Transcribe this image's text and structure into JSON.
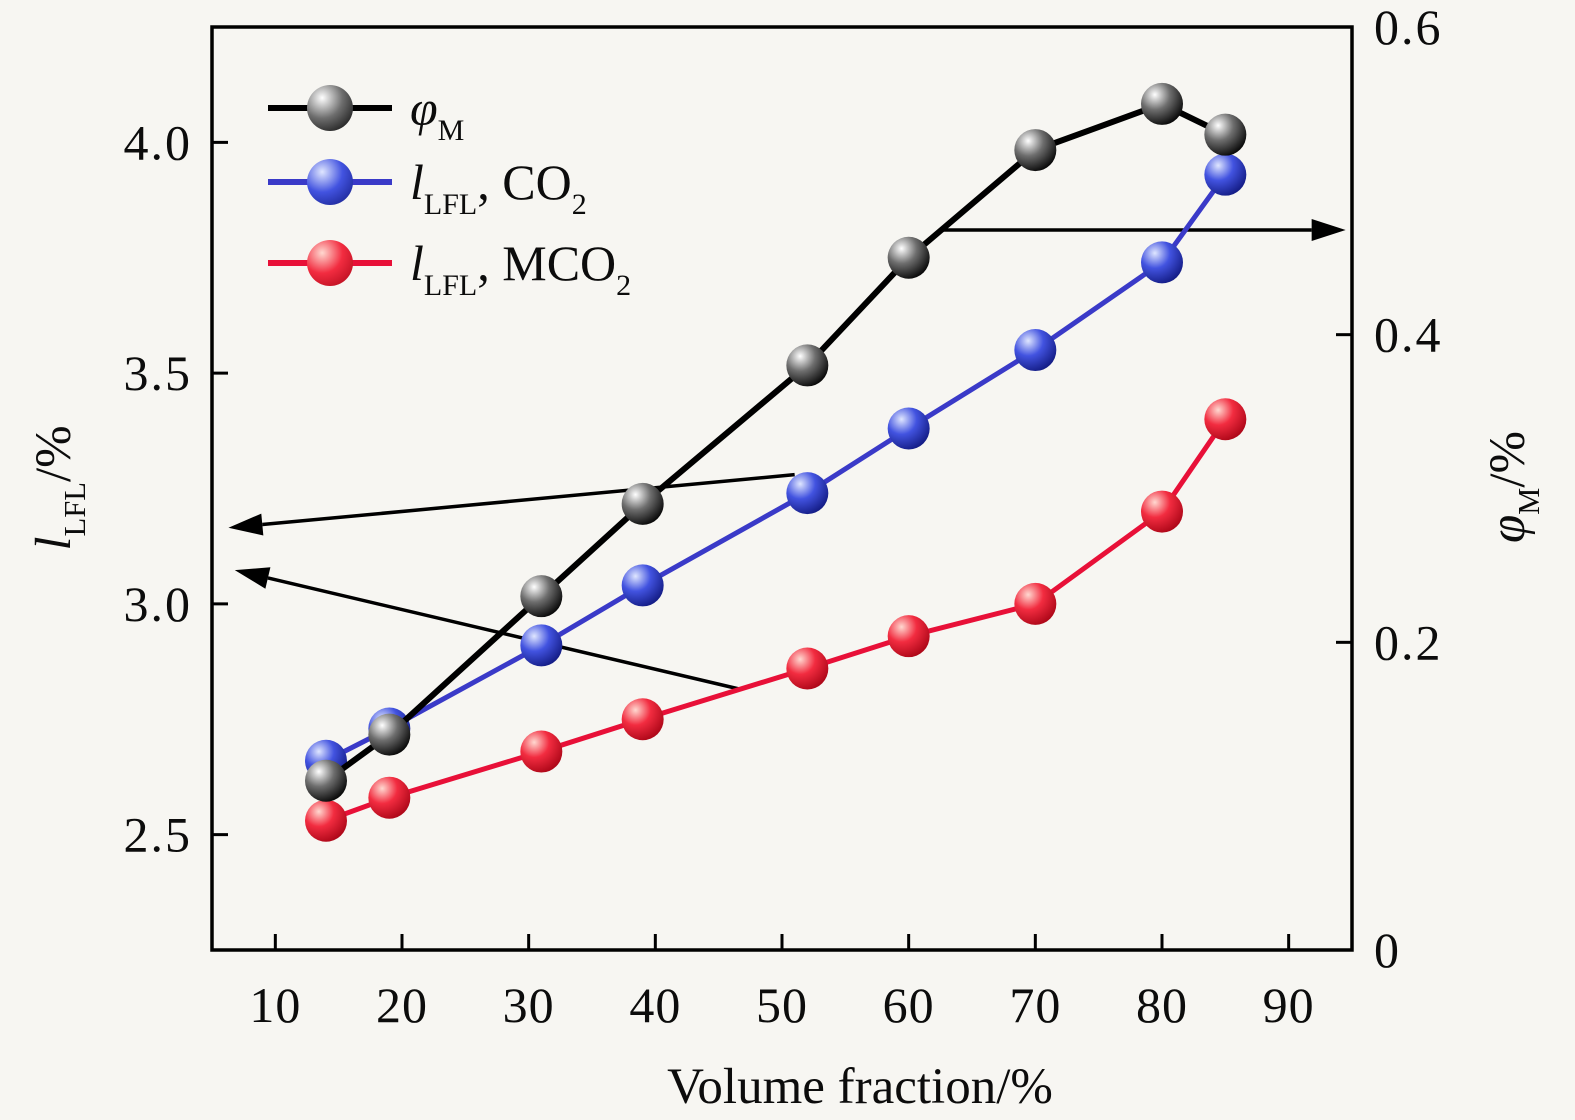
{
  "page": {
    "background": "#f7f6f2"
  },
  "chart_data": {
    "type": "line",
    "title": "",
    "xlabel": "Volume fraction/%",
    "grid": false,
    "legend_position": "upper-left-inside",
    "x_axis": {
      "label": "Volume fraction/%",
      "min": 5,
      "max": 95,
      "ticks": [
        {
          "value": 10,
          "label": "10"
        },
        {
          "value": 20,
          "label": "20"
        },
        {
          "value": 30,
          "label": "30"
        },
        {
          "value": 40,
          "label": "40"
        },
        {
          "value": 50,
          "label": "50"
        },
        {
          "value": 60,
          "label": "60"
        },
        {
          "value": 70,
          "label": "70"
        },
        {
          "value": 80,
          "label": "80"
        },
        {
          "value": 90,
          "label": "90"
        }
      ]
    },
    "left_axis": {
      "label": {
        "symbol": "l",
        "sub": "LFL",
        "rest": "/%"
      },
      "min": 2.25,
      "max": 4.25,
      "ticks": [
        {
          "value": 2.5,
          "label": "2.5"
        },
        {
          "value": 3.0,
          "label": "3.0"
        },
        {
          "value": 3.5,
          "label": "3.5"
        },
        {
          "value": 4.0,
          "label": "4.0"
        }
      ]
    },
    "right_axis": {
      "label": {
        "symbol": "φ",
        "sub": "M",
        "rest": "/%"
      },
      "min": 0,
      "max": 0.6,
      "ticks": [
        {
          "value": 0,
          "label": "0"
        },
        {
          "value": 0.2,
          "label": "0.2"
        },
        {
          "value": 0.4,
          "label": "0.4"
        },
        {
          "value": 0.6,
          "label": "0.6"
        }
      ]
    },
    "x": [
      14,
      19,
      31,
      39,
      52,
      60,
      70,
      80,
      85
    ],
    "series": [
      {
        "id": "phiM",
        "axis": "right",
        "line_color": "#000000",
        "sphere": [
          "#ffffff",
          "#6e6e6e",
          "#000000"
        ],
        "values": [
          0.11,
          0.14,
          0.23,
          0.29,
          0.38,
          0.45,
          0.52,
          0.55,
          0.53
        ]
      },
      {
        "id": "lfl-co2",
        "axis": "left",
        "line_color": "#3a3ac8",
        "sphere": [
          "#dfe6ff",
          "#4253e0",
          "#10187e"
        ],
        "values": [
          2.66,
          2.73,
          2.91,
          3.04,
          3.24,
          3.38,
          3.55,
          3.74,
          3.93
        ]
      },
      {
        "id": "lfl-mco2",
        "axis": "left",
        "line_color": "#e81038",
        "sphere": [
          "#ffd8d0",
          "#f22c40",
          "#a80415"
        ],
        "values": [
          2.53,
          2.58,
          2.68,
          2.75,
          2.86,
          2.93,
          3.0,
          3.2,
          3.4
        ]
      }
    ],
    "annotations": [
      {
        "type": "arrow",
        "axis": "right",
        "from": [
          62.5,
          0.468
        ],
        "to": [
          94.5,
          0.468
        ],
        "meaning": "phiM reads on right axis"
      },
      {
        "type": "arrow",
        "axis": "left",
        "from": [
          51.0,
          3.28
        ],
        "to": [
          6.3,
          3.165
        ],
        "meaning": "lfl-co2 reads on left axis"
      },
      {
        "type": "arrow",
        "axis": "left",
        "from": [
          46.7,
          2.815
        ],
        "to": [
          6.8,
          3.073
        ],
        "meaning": "lfl-mco2 reads on left axis"
      }
    ],
    "legend": {
      "items": [
        {
          "series": "phiM",
          "symbol": "φ",
          "sub": "M",
          "rest": "",
          "sub2": ""
        },
        {
          "series": "lfl-co2",
          "symbol": "l",
          "sub": "LFL",
          "rest": ", CO",
          "sub2": "2"
        },
        {
          "series": "lfl-mco2",
          "symbol": "l",
          "sub": "LFL",
          "rest": ", MCO",
          "sub2": "2"
        }
      ]
    }
  }
}
